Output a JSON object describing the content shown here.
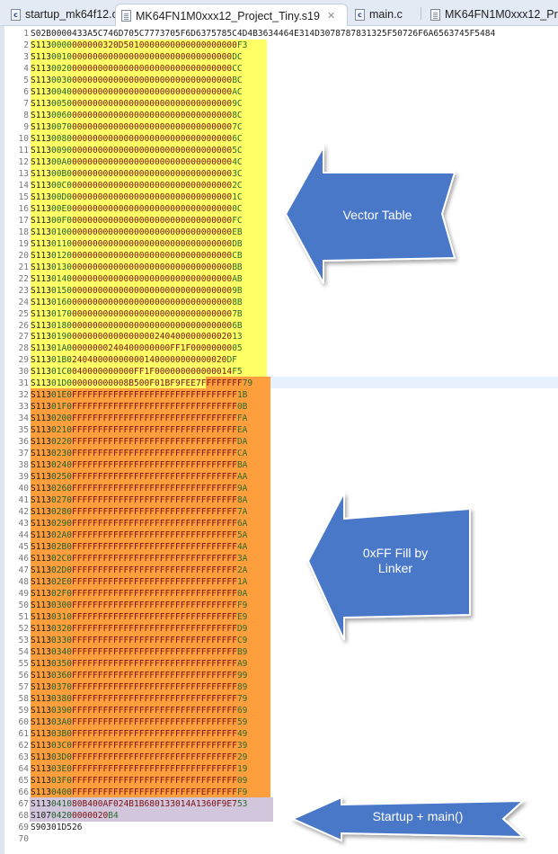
{
  "tabs": [
    {
      "label": "startup_mk64f12.c",
      "icon": "c-file-icon",
      "active": false
    },
    {
      "label": "MK64FN1M0xxx12_Project_Tiny.s19",
      "icon": "text-file-icon",
      "active": true,
      "close": "✕"
    },
    {
      "label": "main.c",
      "icon": "c-file-icon",
      "active": false
    },
    {
      "label": "MK64FN1M0xxx12_Proje",
      "icon": "text-file-icon",
      "active": false
    }
  ],
  "editor": {
    "current_line": 31,
    "lines": [
      "S02B0000433A5C746D705C7773705F6D6375785C4D4B3634464E314D3078787831325F50726F6A6563745F5484",
      "S1130000000000320D5010000000000000000000F3",
      "S11300100000000000000000000000000000000DC",
      "S11300200000000000000000000000000000000CC",
      "S11300300000000000000000000000000000000BC",
      "S11300400000000000000000000000000000000AC",
      "S113005000000000000000000000000000000009C",
      "S113006000000000000000000000000000000008C",
      "S113007000000000000000000000000000000007C",
      "S113008000000000000000000000000000000006C",
      "S113009000000000000000000000000000000005C",
      "S11300A000000000000000000000000000000004C",
      "S11300B000000000000000000000000000000003C",
      "S11300C000000000000000000000000000000002C",
      "S11300D000000000000000000000000000000001C",
      "S11300E000000000000000000000000000000000C",
      "S11300F00000000000000000000000000000000FC",
      "S11301000000000000000000000000000000000EB",
      "S11301100000000000000000000000000000000DB",
      "S11301200000000000000000000000000000000CB",
      "S11301300000000000000000000000000000000BB",
      "S11301400000000000000000000000000000000AB",
      "S113015000000000000000000000000000000009B",
      "S113016000000000000000000000000000000008B",
      "S113017000000000000000000000000000000007B",
      "S113018000000000000000000000000000000006B",
      "S1130190000000000000000024040000000002013",
      "S11301A00000000240400000000FF1F0000000005",
      "S11301B0240400000000001400000000000020DF",
      "S11301C0040000000000FF1F000000000000014F5",
      "S11301D000000000008B500F01BF9FEE7FFFFFFFF79",
      "S11301E0FFFFFFFFFFFFFFFFFFFFFFFFFFFFFFFF1B",
      "S11301F0FFFFFFFFFFFFFFFFFFFFFFFFFFFFFFFF0B",
      "S1130200FFFFFFFFFFFFFFFFFFFFFFFFFFFFFFFFFA",
      "S1130210FFFFFFFFFFFFFFFFFFFFFFFFFFFFFFFFEA",
      "S1130220FFFFFFFFFFFFFFFFFFFFFFFFFFFFFFFFDA",
      "S1130230FFFFFFFFFFFFFFFFFFFFFFFFFFFFFFFFCA",
      "S1130240FFFFFFFFFFFFFFFFFFFFFFFFFFFFFFFFBA",
      "S1130250FFFFFFFFFFFFFFFFFFFFFFFFFFFFFFFFAA",
      "S1130260FFFFFFFFFFFFFFFFFFFFFFFFFFFFFFFF9A",
      "S1130270FFFFFFFFFFFFFFFFFFFFFFFFFFFFFFFF8A",
      "S1130280FFFFFFFFFFFFFFFFFFFFFFFFFFFFFFFF7A",
      "S1130290FFFFFFFFFFFFFFFFFFFFFFFFFFFFFFFF6A",
      "S11302A0FFFFFFFFFFFFFFFFFFFFFFFFFFFFFFFF5A",
      "S11302B0FFFFFFFFFFFFFFFFFFFFFFFFFFFFFFFF4A",
      "S11302C0FFFFFFFFFFFFFFFFFFFFFFFFFFFFFFFF3A",
      "S11302D0FFFFFFFFFFFFFFFFFFFFFFFFFFFFFFFF2A",
      "S11302E0FFFFFFFFFFFFFFFFFFFFFFFFFFFFFFFF1A",
      "S11302F0FFFFFFFFFFFFFFFFFFFFFFFFFFFFFFFF0A",
      "S1130300FFFFFFFFFFFFFFFFFFFFFFFFFFFFFFFFF9",
      "S1130310FFFFFFFFFFFFFFFFFFFFFFFFFFFFFFFFE9",
      "S1130320FFFFFFFFFFFFFFFFFFFFFFFFFFFFFFFFD9",
      "S1130330FFFFFFFFFFFFFFFFFFFFFFFFFFFFFFFFC9",
      "S1130340FFFFFFFFFFFFFFFFFFFFFFFFFFFFFFFFB9",
      "S1130350FFFFFFFFFFFFFFFFFFFFFFFFFFFFFFFFA9",
      "S1130360FFFFFFFFFFFFFFFFFFFFFFFFFFFFFFFF99",
      "S1130370FFFFFFFFFFFFFFFFFFFFFFFFFFFFFFFF89",
      "S1130380FFFFFFFFFFFFFFFFFFFFFFFFFFFFFFFF79",
      "S1130390FFFFFFFFFFFFFFFFFFFFFFFFFFFFFFFF69",
      "S11303A0FFFFFFFFFFFFFFFFFFFFFFFFFFFFFFFF59",
      "S11303B0FFFFFFFFFFFFFFFFFFFFFFFFFFFFFFFF49",
      "S11303C0FFFFFFFFFFFFFFFFFFFFFFFFFFFFFFFF39",
      "S11303D0FFFFFFFFFFFFFFFFFFFFFFFFFFFFFFFF29",
      "S11303E0FFFFFFFFFFFFFFFFFFFFFFFFFFFFFFFF19",
      "S11303F0FFFFFFFFFFFFFFFFFFFFFFFFFFFFFFFF09",
      "S1130400FFFFFFFFFFFFFFFFFFFFFFFFFEFFFFFFF9",
      "S113041080B400AF024B1B680133014A1360F9E753",
      "S10704200000020B4",
      "S90301D526",
      ""
    ]
  },
  "regions": [
    {
      "name": "vector-table",
      "color": "#ffff66",
      "from_line": 2,
      "to_line": 31
    },
    {
      "name": "ff-fill",
      "color": "#ff9e3d",
      "from_line": 31,
      "to_line": 66
    },
    {
      "name": "startup-main",
      "color": "#d1c6dc",
      "from_line": 67,
      "to_line": 68
    }
  ],
  "annotations": [
    {
      "label": "Vector Table",
      "color": "#4a78c8"
    },
    {
      "label": "0xFF Fill by Linker",
      "line1": "0xFF Fill by",
      "line2": "Linker",
      "color": "#4a78c8"
    },
    {
      "label": "Startup + main()",
      "color": "#4a78c8"
    }
  ],
  "colors": {
    "current_line": "#e8f2fe",
    "arrow_fill": "#4a78c8"
  }
}
